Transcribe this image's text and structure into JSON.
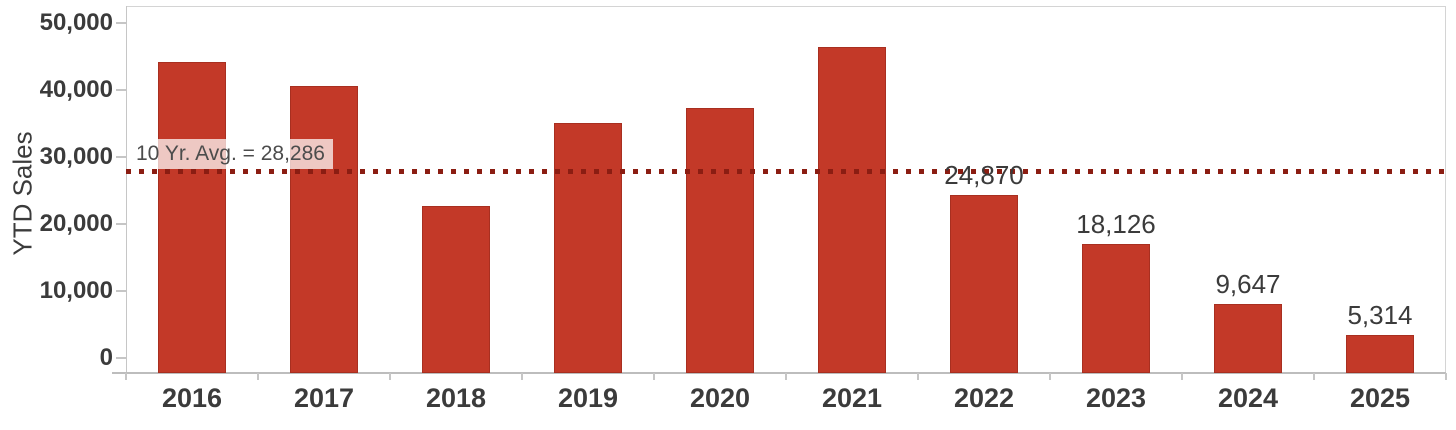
{
  "chart_data": {
    "type": "bar",
    "title": "",
    "xlabel": "",
    "ylabel": "YTD Sales",
    "categories": [
      "2016",
      "2017",
      "2018",
      "2019",
      "2020",
      "2021",
      "2022",
      "2023",
      "2024",
      "2025"
    ],
    "values": [
      43600,
      40200,
      23400,
      35000,
      37100,
      45600,
      24870,
      18126,
      9647,
      5314
    ],
    "value_labels": [
      "",
      "",
      "",
      "",
      "",
      "",
      "24,870",
      "18,126",
      "9,647",
      "5,314"
    ],
    "y_ticks": [
      "0",
      "10,000",
      "20,000",
      "30,000",
      "40,000",
      "50,000"
    ],
    "y_tick_values": [
      0,
      10000,
      20000,
      30000,
      40000,
      50000
    ],
    "ylim": [
      0,
      50000
    ],
    "grid": false,
    "legend_position": "none",
    "reference_line": {
      "value": 28286,
      "label": "10 Yr. Avg. = 28,286",
      "style": "dotted"
    }
  },
  "colors": {
    "bar_fill": "#c33928",
    "bar_border": "#a82f20",
    "reference_line": "#8b1d12",
    "axis_text": "#3b3b3b",
    "annotation_text": "#4c4c4c",
    "axis_line": "#c6c6c6",
    "background": "#ffffff"
  }
}
